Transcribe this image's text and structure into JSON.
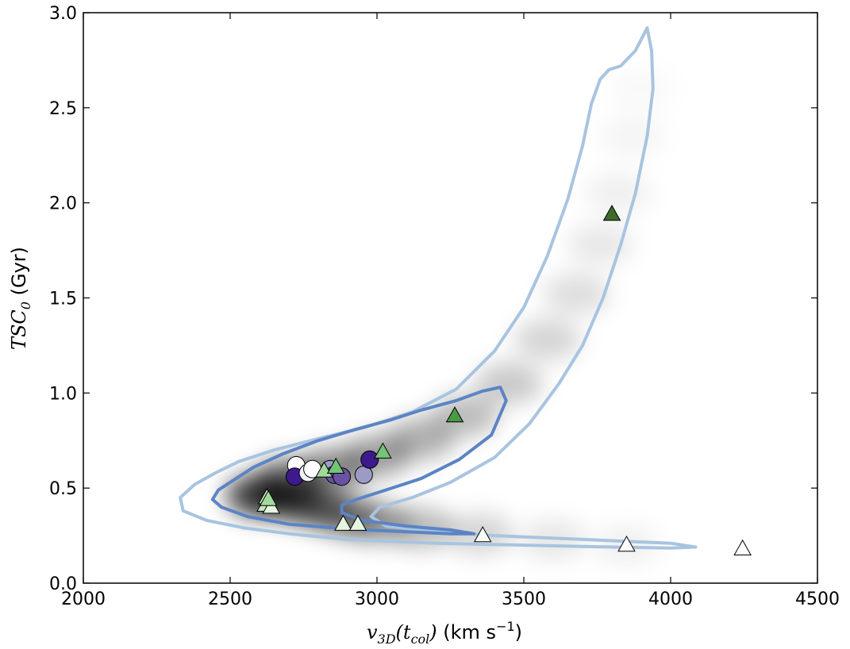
{
  "chart_data": {
    "type": "scatter",
    "xlabel_math": "v",
    "xlabel_sub": "3D",
    "xlabel_paren": "(t",
    "xlabel_sub2": "col",
    "xlabel_close": ")",
    "xlabel_units": " (km s",
    "xlabel_exp": "−1",
    "xlabel_units_close": ")",
    "ylabel_math": "TSC",
    "ylabel_sub": "0",
    "ylabel_units": " (Gyr)",
    "xlim": [
      2000,
      4500
    ],
    "ylim": [
      0.0,
      3.0
    ],
    "x_ticks": [
      "2000",
      "2500",
      "3000",
      "3500",
      "4000",
      "4500"
    ],
    "y_ticks": [
      "0.0",
      "0.5",
      "1.0",
      "1.5",
      "2.0",
      "2.5",
      "3.0"
    ],
    "grid": false,
    "legend": "none",
    "colors": {
      "contour_outer": "#a8c4e0",
      "contour_inner": "#5b84c4",
      "density": "#000000"
    },
    "contour_outer": [
      [
        2450,
        0.58
      ],
      [
        2380,
        0.52
      ],
      [
        2330,
        0.45
      ],
      [
        2340,
        0.38
      ],
      [
        2420,
        0.33
      ],
      [
        2550,
        0.29
      ],
      [
        2700,
        0.26
      ],
      [
        2900,
        0.23
      ],
      [
        3200,
        0.21
      ],
      [
        3500,
        0.2
      ],
      [
        3800,
        0.19
      ],
      [
        4000,
        0.185
      ],
      [
        4085,
        0.19
      ],
      [
        4000,
        0.21
      ],
      [
        3700,
        0.23
      ],
      [
        3400,
        0.25
      ],
      [
        3150,
        0.28
      ],
      [
        3030,
        0.3
      ],
      [
        2980,
        0.35
      ],
      [
        3010,
        0.4
      ],
      [
        3120,
        0.45
      ],
      [
        3250,
        0.53
      ],
      [
        3400,
        0.66
      ],
      [
        3520,
        0.84
      ],
      [
        3620,
        1.05
      ],
      [
        3700,
        1.25
      ],
      [
        3770,
        1.5
      ],
      [
        3830,
        1.78
      ],
      [
        3880,
        2.05
      ],
      [
        3920,
        2.35
      ],
      [
        3940,
        2.6
      ],
      [
        3935,
        2.8
      ],
      [
        3920,
        2.92
      ],
      [
        3880,
        2.8
      ],
      [
        3830,
        2.72
      ],
      [
        3790,
        2.7
      ],
      [
        3760,
        2.65
      ],
      [
        3730,
        2.52
      ],
      [
        3700,
        2.3
      ],
      [
        3650,
        2.02
      ],
      [
        3580,
        1.72
      ],
      [
        3500,
        1.45
      ],
      [
        3400,
        1.22
      ],
      [
        3270,
        1.02
      ],
      [
        3120,
        0.9
      ],
      [
        2960,
        0.82
      ],
      [
        2800,
        0.76
      ],
      [
        2650,
        0.7
      ],
      [
        2530,
        0.64
      ],
      [
        2450,
        0.58
      ]
    ],
    "contour_inner": [
      [
        2520,
        0.55
      ],
      [
        2460,
        0.49
      ],
      [
        2440,
        0.44
      ],
      [
        2470,
        0.4
      ],
      [
        2560,
        0.35
      ],
      [
        2700,
        0.31
      ],
      [
        2900,
        0.285
      ],
      [
        3100,
        0.27
      ],
      [
        3250,
        0.26
      ],
      [
        3330,
        0.26
      ],
      [
        3250,
        0.28
      ],
      [
        3100,
        0.3
      ],
      [
        2950,
        0.33
      ],
      [
        2880,
        0.37
      ],
      [
        2880,
        0.41
      ],
      [
        2930,
        0.44
      ],
      [
        3030,
        0.49
      ],
      [
        3150,
        0.55
      ],
      [
        3280,
        0.65
      ],
      [
        3390,
        0.78
      ],
      [
        3440,
        0.96
      ],
      [
        3420,
        1.03
      ],
      [
        3360,
        1.01
      ],
      [
        3270,
        0.96
      ],
      [
        3150,
        0.91
      ],
      [
        3050,
        0.86
      ],
      [
        2930,
        0.81
      ],
      [
        2800,
        0.75
      ],
      [
        2680,
        0.68
      ],
      [
        2580,
        0.61
      ],
      [
        2520,
        0.55
      ]
    ],
    "density_ridge": [
      [
        2600,
        0.46,
        1.0
      ],
      [
        2700,
        0.44,
        0.85
      ],
      [
        2800,
        0.4,
        0.7
      ],
      [
        2900,
        0.35,
        0.55
      ],
      [
        3000,
        0.32,
        0.45
      ],
      [
        3150,
        0.29,
        0.35
      ],
      [
        3350,
        0.26,
        0.22
      ],
      [
        3600,
        0.23,
        0.12
      ],
      [
        3850,
        0.2,
        0.07
      ],
      [
        2700,
        0.55,
        0.7
      ],
      [
        2850,
        0.6,
        0.6
      ],
      [
        3000,
        0.67,
        0.5
      ],
      [
        3150,
        0.76,
        0.42
      ],
      [
        3300,
        0.88,
        0.35
      ],
      [
        3450,
        1.05,
        0.28
      ],
      [
        3580,
        1.28,
        0.22
      ],
      [
        3680,
        1.52,
        0.17
      ],
      [
        3760,
        1.78,
        0.12
      ],
      [
        3820,
        2.05,
        0.08
      ],
      [
        3870,
        2.35,
        0.05
      ],
      [
        3900,
        2.6,
        0.03
      ]
    ],
    "series": [
      {
        "marker": "circle",
        "points": [
          {
            "x": 2725,
            "y": 0.62,
            "color": "#ffffff"
          },
          {
            "x": 2720,
            "y": 0.56,
            "color": "#3d1a8c"
          },
          {
            "x": 2765,
            "y": 0.58,
            "color": "#f2f0f7"
          },
          {
            "x": 2780,
            "y": 0.6,
            "color": "#ffffff"
          },
          {
            "x": 2840,
            "y": 0.6,
            "color": "#9e9ac8"
          },
          {
            "x": 2855,
            "y": 0.57,
            "color": "#6a51a3"
          },
          {
            "x": 2880,
            "y": 0.56,
            "color": "#6a51a3"
          },
          {
            "x": 2955,
            "y": 0.57,
            "color": "#9e9ac8"
          },
          {
            "x": 2975,
            "y": 0.65,
            "color": "#3d1a8c"
          }
        ]
      },
      {
        "marker": "triangle",
        "points": [
          {
            "x": 2625,
            "y": 0.45,
            "color": "#c7e9c0"
          },
          {
            "x": 2620,
            "y": 0.41,
            "color": "#c7e9c0"
          },
          {
            "x": 2640,
            "y": 0.4,
            "color": "#e5f5e0"
          },
          {
            "x": 2630,
            "y": 0.44,
            "color": "#a1d99b"
          },
          {
            "x": 2820,
            "y": 0.59,
            "color": "#a1d99b"
          },
          {
            "x": 2860,
            "y": 0.61,
            "color": "#74c476"
          },
          {
            "x": 3020,
            "y": 0.69,
            "color": "#74c476"
          },
          {
            "x": 3265,
            "y": 0.88,
            "color": "#4a9a45"
          },
          {
            "x": 3800,
            "y": 1.94,
            "color": "#3c6b2c"
          },
          {
            "x": 2885,
            "y": 0.31,
            "color": "#e5f5e0"
          },
          {
            "x": 2935,
            "y": 0.31,
            "color": "#e5f5e0"
          },
          {
            "x": 3360,
            "y": 0.25,
            "color": "#f7fcf5"
          },
          {
            "x": 3850,
            "y": 0.2,
            "color": "#ffffff"
          },
          {
            "x": 4245,
            "y": 0.18,
            "color": "#ffffff"
          }
        ]
      }
    ]
  }
}
